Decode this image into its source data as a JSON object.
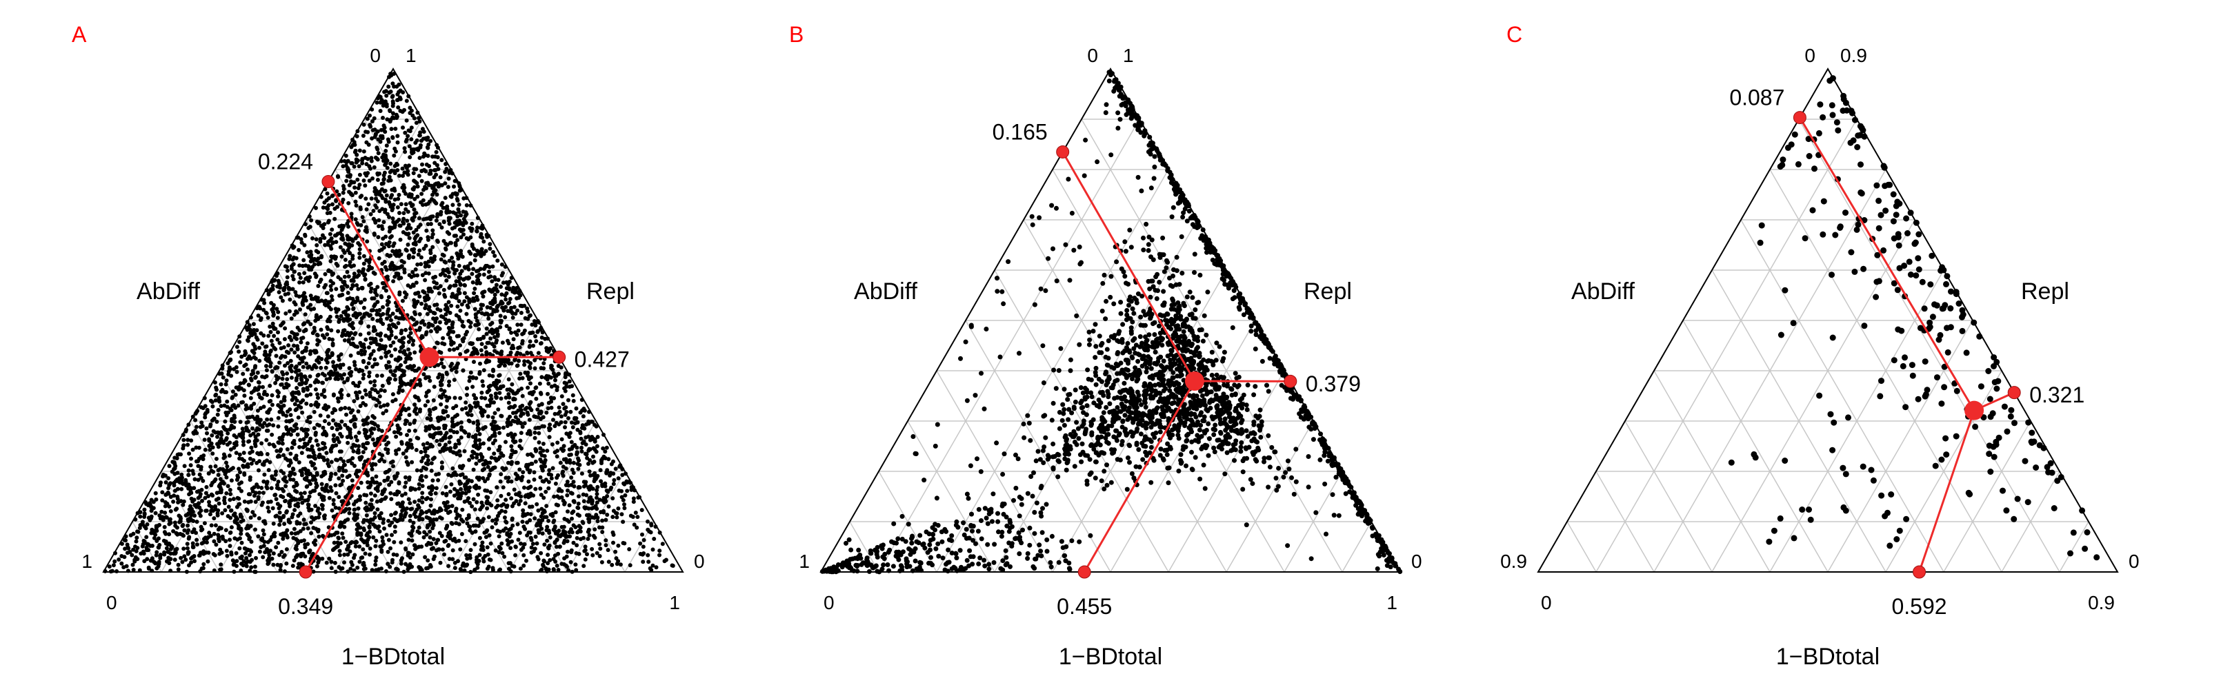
{
  "figure": {
    "background_color": "#ffffff",
    "panel_label_color": "#ff0000",
    "panel_label_fontsize": 32,
    "axis_label_fontsize": 34,
    "tick_label_fontsize": 28,
    "value_label_fontsize": 32,
    "axis_label_color": "#000000",
    "tick_label_color": "#000000",
    "value_label_color": "#000000",
    "point_color": "#000000",
    "centroid_color": "#ee2b2b",
    "centroid_line_width": 3,
    "centroid_edge_radius": 9,
    "centroid_center_radius": 14,
    "grid_color": "#c8c8c8",
    "triangle_edge_color": "#000000",
    "triangle_edge_width": 2,
    "axes": {
      "top": {
        "label": "Repl"
      },
      "left": {
        "label": "AbDiff"
      },
      "bottom": {
        "label": "1−BDtotal"
      }
    }
  },
  "panels": [
    {
      "id": "A",
      "axis_limits": {
        "min": 0.0,
        "max": 1.0
      },
      "abdiff": 0.224,
      "repl": 0.427,
      "similarity": 0.349,
      "grid_divisions": 10,
      "point_radius": 3.0,
      "n_points": 6000,
      "density_profile": "full",
      "seed": 11
    },
    {
      "id": "B",
      "axis_limits": {
        "min": 0.0,
        "max": 1.0
      },
      "abdiff": 0.165,
      "repl": 0.379,
      "similarity": 0.455,
      "grid_divisions": 10,
      "point_radius": 3.5,
      "n_points": 2400,
      "density_profile": "clustered",
      "seed": 23
    },
    {
      "id": "C",
      "axis_limits": {
        "min": 0.0,
        "max": 0.9
      },
      "abdiff": 0.087,
      "repl": 0.321,
      "similarity": 0.592,
      "grid_divisions": 10,
      "point_radius": 4.5,
      "n_points": 260,
      "density_profile": "right_edge",
      "seed": 37
    }
  ]
}
